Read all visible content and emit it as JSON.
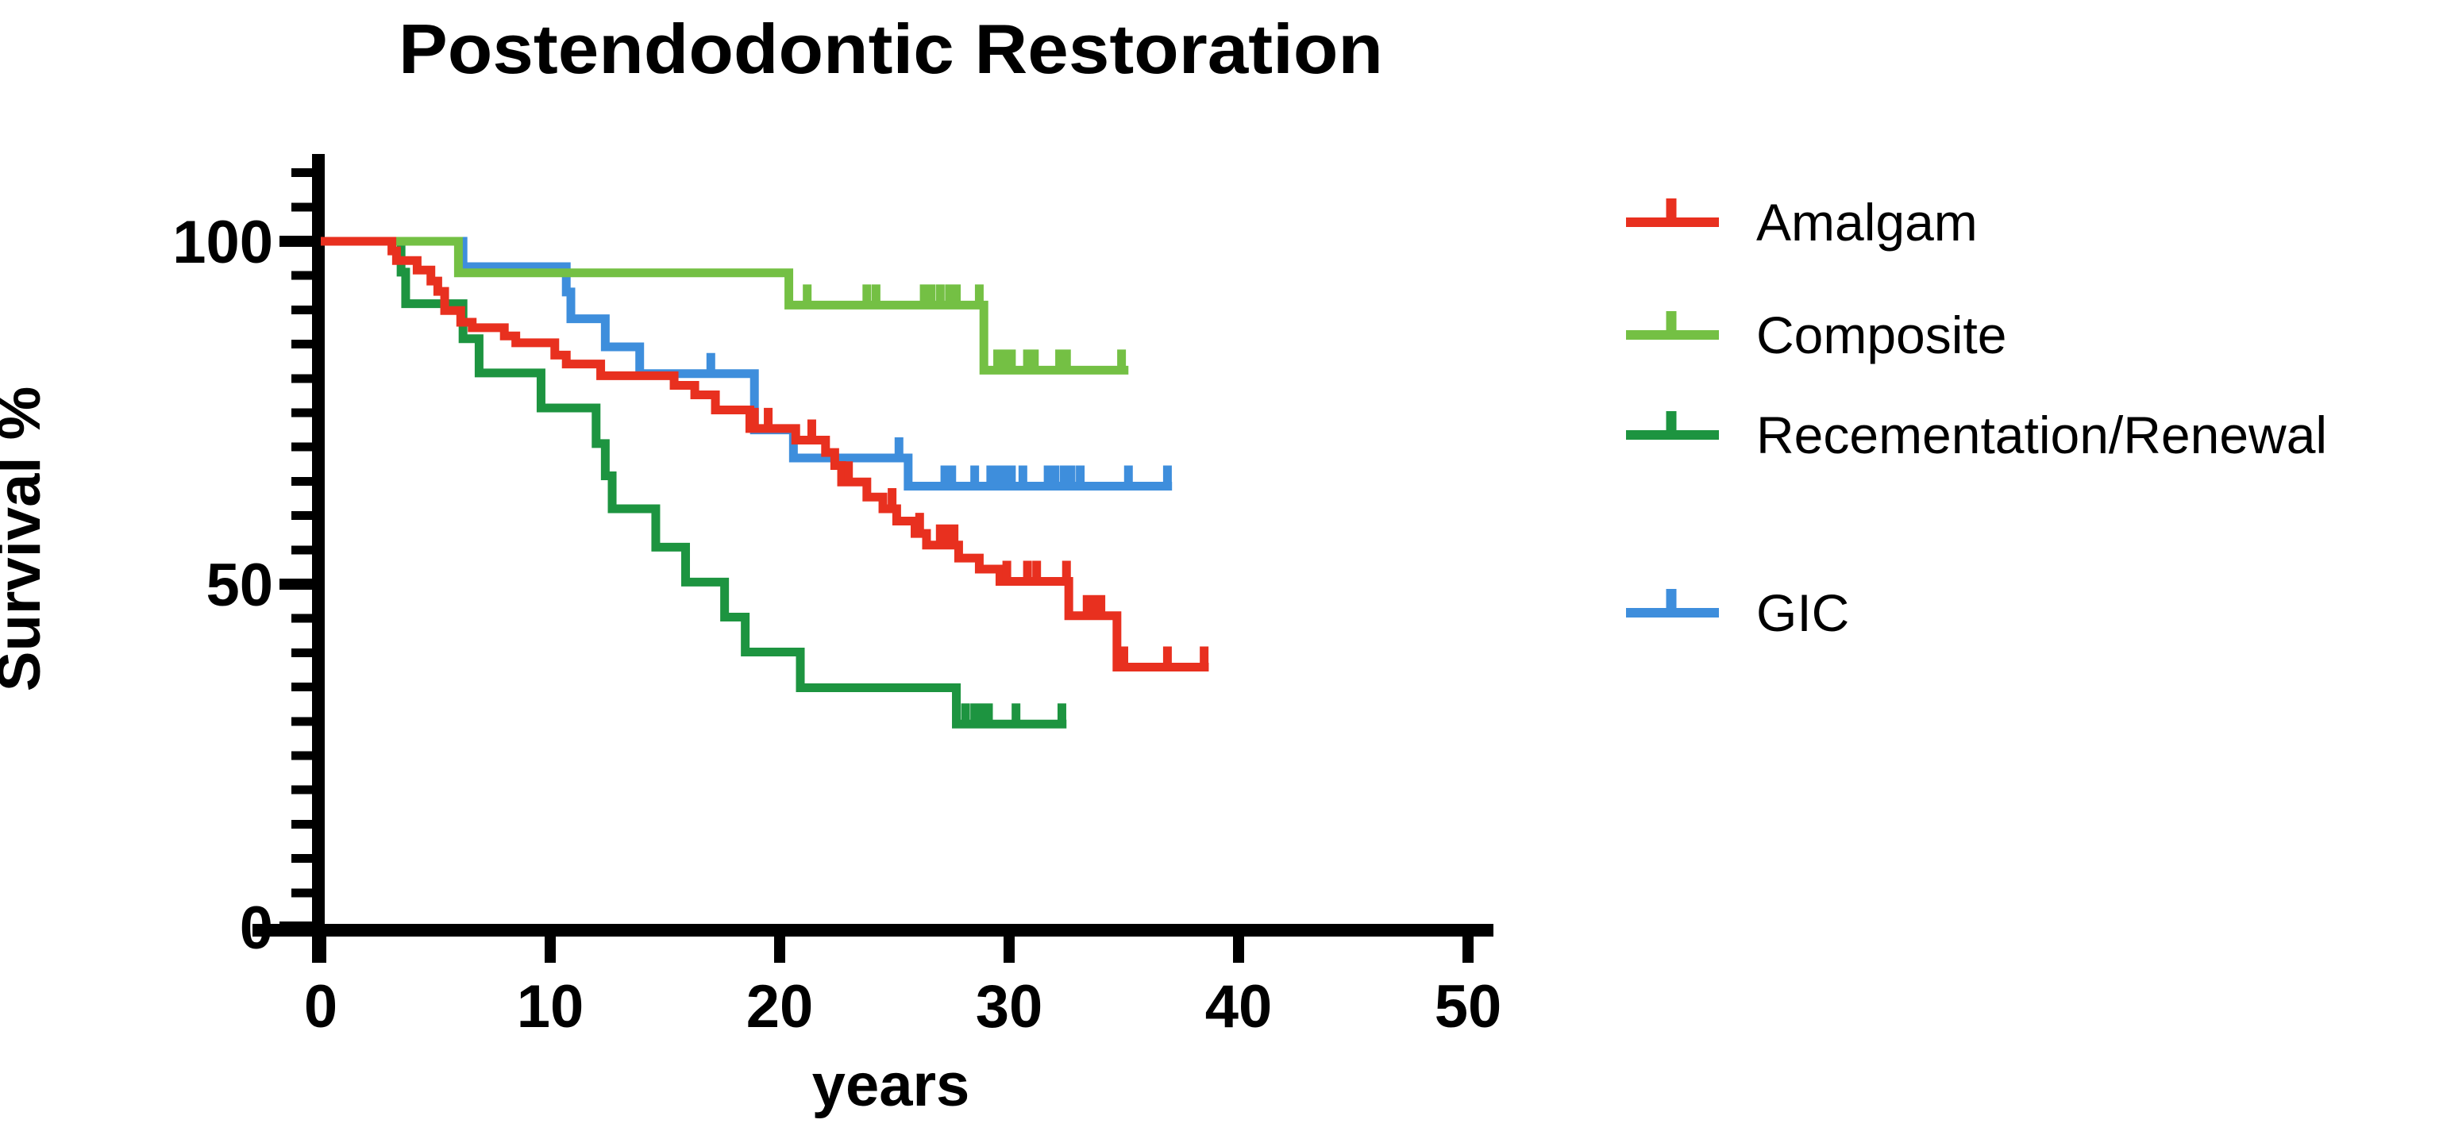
{
  "chart_data": {
    "type": "line",
    "subtype": "kaplan-meier-step-survival",
    "title": "Postendodontic Restoration",
    "xlabel": "years",
    "ylabel": "Survival %",
    "xlim": [
      0,
      50
    ],
    "ylim": [
      0,
      100
    ],
    "x_ticks": [
      0,
      10,
      20,
      30,
      40,
      50
    ],
    "y_ticks": [
      0,
      50,
      100
    ],
    "y_minor_tick_step": 5,
    "grid": false,
    "legend_position": "right",
    "axis_color": "#000000",
    "series": [
      {
        "name": "Amalgam",
        "color": "#e8301f",
        "points": [
          [
            0,
            100
          ],
          [
            3.1,
            98.6
          ],
          [
            3.3,
            97.2
          ],
          [
            4.2,
            95.8
          ],
          [
            4.8,
            94.2
          ],
          [
            5.1,
            92.7
          ],
          [
            5.4,
            89.9
          ],
          [
            6.1,
            88.2
          ],
          [
            6.6,
            87.4
          ],
          [
            8.0,
            86.2
          ],
          [
            8.5,
            85.2
          ],
          [
            10.2,
            83.4
          ],
          [
            10.7,
            82.1
          ],
          [
            12.2,
            80.4
          ],
          [
            15.4,
            79.0
          ],
          [
            16.3,
            77.6
          ],
          [
            17.2,
            75.4
          ],
          [
            18.7,
            72.7
          ],
          [
            20.7,
            71.0
          ],
          [
            22.0,
            69.2
          ],
          [
            22.4,
            67.3
          ],
          [
            22.7,
            64.9
          ],
          [
            23.8,
            62.7
          ],
          [
            24.5,
            61.0
          ],
          [
            25.1,
            59.2
          ],
          [
            25.9,
            57.4
          ],
          [
            26.4,
            55.7
          ],
          [
            27.8,
            53.8
          ],
          [
            28.7,
            52.2
          ],
          [
            29.6,
            50.4
          ],
          [
            32.6,
            45.4
          ],
          [
            34.7,
            37.9
          ]
        ],
        "end_time": 38.7,
        "censor_marks": [
          [
            18.9,
            72.7
          ],
          [
            19.5,
            72.7
          ],
          [
            21.4,
            71.0
          ],
          [
            23.0,
            64.9
          ],
          [
            24.9,
            61.0
          ],
          [
            26.1,
            57.4
          ],
          [
            27.0,
            55.7
          ],
          [
            27.3,
            55.7
          ],
          [
            27.6,
            55.7
          ],
          [
            29.9,
            50.4
          ],
          [
            30.8,
            50.4
          ],
          [
            31.2,
            50.4
          ],
          [
            32.5,
            50.4
          ],
          [
            33.4,
            45.4
          ],
          [
            33.7,
            45.4
          ],
          [
            34.0,
            45.4
          ],
          [
            35.0,
            37.9
          ],
          [
            36.9,
            37.9
          ],
          [
            38.5,
            37.9
          ]
        ]
      },
      {
        "name": "Composite",
        "color": "#74c044",
        "points": [
          [
            0,
            100
          ],
          [
            6.0,
            95.4
          ],
          [
            20.4,
            90.7
          ],
          [
            28.9,
            81.2
          ]
        ],
        "end_time": 35.2,
        "censor_marks": [
          [
            21.2,
            90.7
          ],
          [
            23.8,
            90.7
          ],
          [
            24.2,
            90.7
          ],
          [
            26.3,
            90.7
          ],
          [
            26.6,
            90.7
          ],
          [
            27.0,
            90.7
          ],
          [
            27.4,
            90.7
          ],
          [
            27.7,
            90.7
          ],
          [
            28.7,
            90.7
          ],
          [
            29.5,
            81.2
          ],
          [
            29.8,
            81.2
          ],
          [
            30.1,
            81.2
          ],
          [
            30.8,
            81.2
          ],
          [
            31.1,
            81.2
          ],
          [
            32.2,
            81.2
          ],
          [
            32.5,
            81.2
          ],
          [
            34.9,
            81.2
          ]
        ]
      },
      {
        "name": "Recementation/Renewal",
        "color": "#1d9440",
        "points": [
          [
            0,
            100
          ],
          [
            3.5,
            95.5
          ],
          [
            3.7,
            90.9
          ],
          [
            6.2,
            85.8
          ],
          [
            6.9,
            80.8
          ],
          [
            9.6,
            75.7
          ],
          [
            12.0,
            70.5
          ],
          [
            12.4,
            65.8
          ],
          [
            12.7,
            61.0
          ],
          [
            14.6,
            55.4
          ],
          [
            15.9,
            50.3
          ],
          [
            17.6,
            45.2
          ],
          [
            18.5,
            40.1
          ],
          [
            20.9,
            34.9
          ],
          [
            27.7,
            29.6
          ]
        ],
        "end_time": 32.5,
        "censor_marks": [
          [
            28.1,
            29.6
          ],
          [
            28.5,
            29.6
          ],
          [
            28.8,
            29.6
          ],
          [
            29.1,
            29.6
          ],
          [
            30.3,
            29.6
          ],
          [
            32.3,
            29.6
          ]
        ]
      },
      {
        "name": "GIC",
        "color": "#3e8edc",
        "points": [
          [
            0,
            100
          ],
          [
            6.2,
            96.3
          ],
          [
            10.7,
            92.6
          ],
          [
            10.9,
            88.7
          ],
          [
            12.4,
            84.6
          ],
          [
            13.9,
            80.7
          ],
          [
            18.9,
            72.5
          ],
          [
            20.6,
            68.4
          ],
          [
            25.6,
            64.3
          ]
        ],
        "end_time": 37.1,
        "censor_marks": [
          [
            17.0,
            80.7
          ],
          [
            25.2,
            68.4
          ],
          [
            27.2,
            64.3
          ],
          [
            27.5,
            64.3
          ],
          [
            28.5,
            64.3
          ],
          [
            29.2,
            64.3
          ],
          [
            29.5,
            64.3
          ],
          [
            29.8,
            64.3
          ],
          [
            30.1,
            64.3
          ],
          [
            30.6,
            64.3
          ],
          [
            31.7,
            64.3
          ],
          [
            32.0,
            64.3
          ],
          [
            32.4,
            64.3
          ],
          [
            32.7,
            64.3
          ],
          [
            33.1,
            64.3
          ],
          [
            35.2,
            64.3
          ],
          [
            36.9,
            64.3
          ]
        ]
      }
    ]
  }
}
